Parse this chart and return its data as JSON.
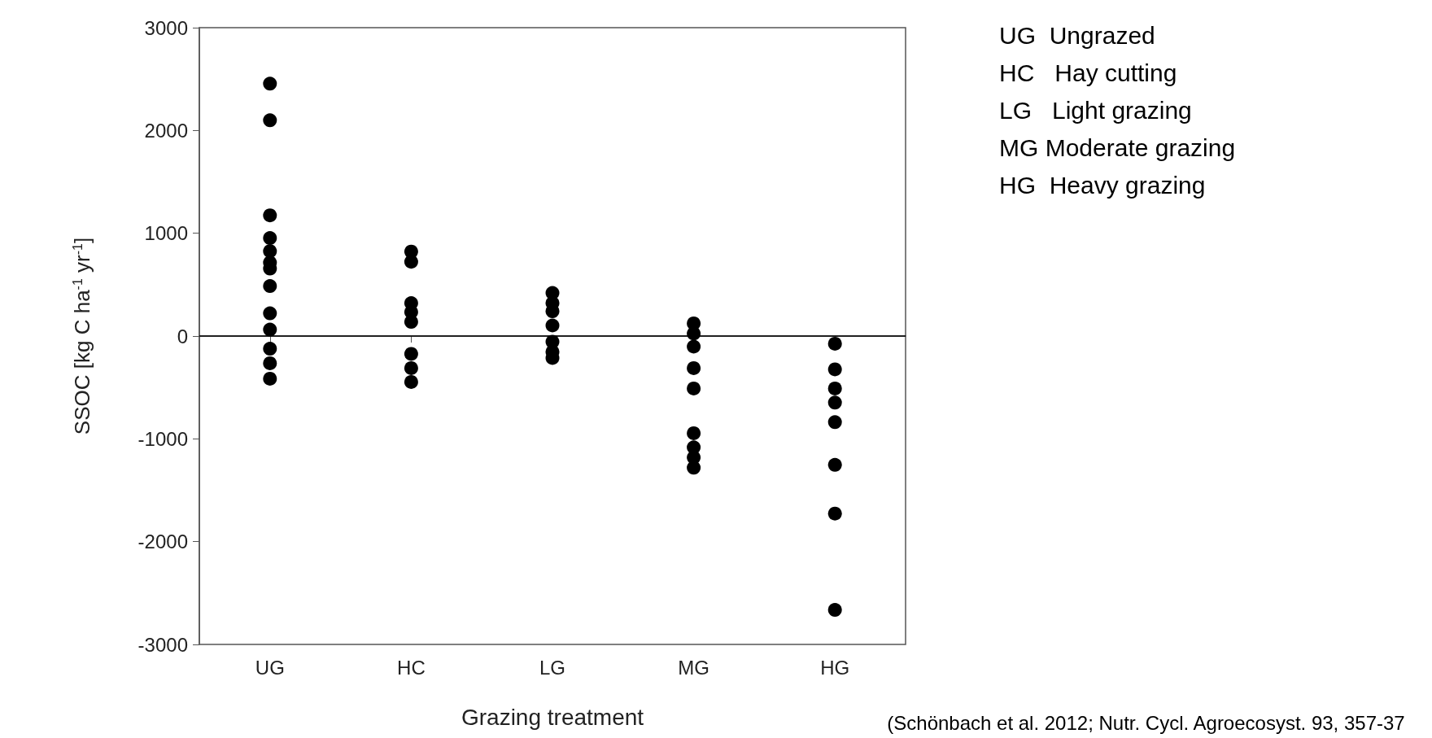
{
  "chart_data": {
    "type": "scatter",
    "xlabel": "Grazing treatment",
    "ylabel": "SSOC [kg C ha$^{-1}$ yr$^{-1}$]",
    "categories": [
      "UG",
      "HC",
      "LG",
      "MG",
      "HG"
    ],
    "series": [
      {
        "color": "#000000",
        "x": [
          "UG",
          "UG",
          "UG",
          "UG",
          "UG",
          "UG",
          "UG",
          "UG",
          "UG",
          "UG",
          "UG",
          "UG",
          "UG",
          "UG",
          "HC",
          "HC",
          "HC",
          "HC",
          "HC",
          "HC",
          "HC",
          "HC",
          "LG",
          "LG",
          "LG",
          "LG",
          "LG",
          "LG",
          "LG",
          "MG",
          "MG",
          "MG",
          "MG",
          "MG",
          "MG",
          "MG",
          "MG",
          "MG",
          "HG",
          "HG",
          "HG",
          "HG",
          "HG",
          "HG",
          "HG",
          "HG"
        ],
        "values": [
          2455,
          2099,
          1174,
          null,
          953,
          826,
          715,
          656,
          486,
          221,
          63,
          -123,
          -265,
          -415,
          822,
          723,
          320,
          233,
          138,
          -174,
          -312,
          -447,
          419,
          320,
          241,
          103,
          -55,
          -154,
          -213,
          123,
          24,
          -103,
          -312,
          -510,
          -945,
          -1083,
          -1182,
          -1281,
          -75,
          -324,
          -510,
          -648,
          -838,
          -1253,
          -1727,
          -2664
        ]
      }
    ],
    "ylim": [
      -3000,
      3000
    ],
    "yticks": [
      -3000,
      -2000,
      -1000,
      0,
      1000,
      2000,
      3000
    ],
    "grid": false,
    "marker": "circle",
    "ref_lines": [
      {
        "axis": "y",
        "value": 0,
        "color": "#000000"
      }
    ],
    "annotations": [
      "UG  Ungrazed",
      "HC   Hay cutting",
      "LG   Light grazing",
      "MG Moderate grazing",
      "HG  Heavy grazing",
      "(Schönbach et al. 2012; Nutr. Cycl. Agroecosyst. 93, 357-37"
    ]
  }
}
